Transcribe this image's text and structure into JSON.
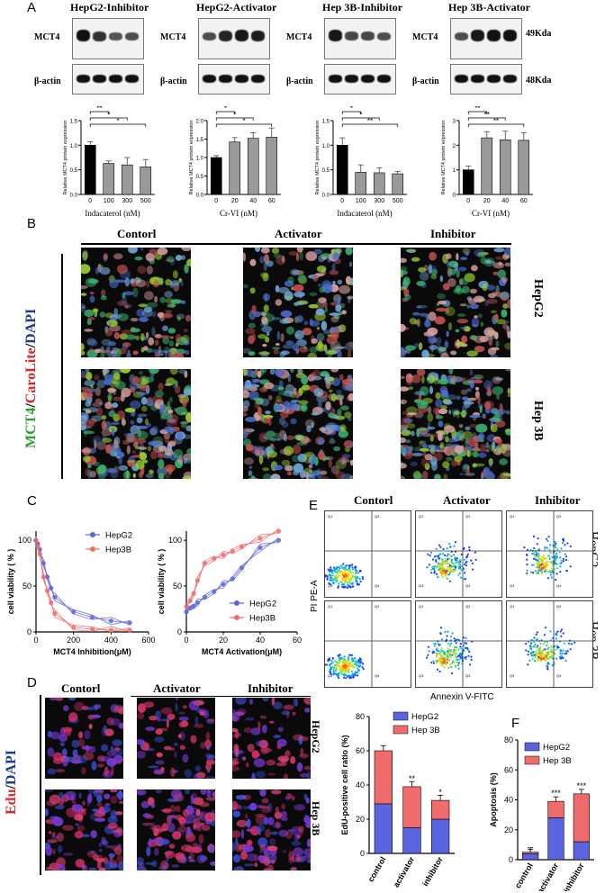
{
  "panels": {
    "A": "A",
    "B": "B",
    "C": "C",
    "D": "D",
    "E": "E",
    "F": "F"
  },
  "panelA": {
    "blots": [
      {
        "title": "HepG2-Inhibitor",
        "label_top": "MCT4",
        "label_bottom": "β-actin"
      },
      {
        "title": "HepG2-Activator",
        "label_top": "MCT4",
        "label_bottom": "β-actin"
      },
      {
        "title": "Hep 3B-Inhibitor",
        "label_top": "MCT4",
        "label_bottom": "β-actin"
      },
      {
        "title": "Hep 3B-Activator",
        "label_top": "MCT4",
        "label_bottom": "β-actin"
      }
    ],
    "kda_top": "49Kda",
    "kda_bottom": "48Kda",
    "xcaption_inhibitor": "Indacaterol (nM)",
    "xcaption_activator": "Cr-VI  (nM)"
  },
  "panelB": {
    "columns": [
      "Contorl",
      "Activator",
      "Inhibitor"
    ],
    "rows": [
      "HepG2",
      "Hep 3B"
    ],
    "stain_parts": [
      {
        "text": "MCT4",
        "color": "#2ca02c"
      },
      {
        "text": "/",
        "color": "#000000"
      },
      {
        "text": "CaroLite",
        "color": "#d62728"
      },
      {
        "text": "/",
        "color": "#000000"
      },
      {
        "text": "DAPI",
        "color": "#1f3a93"
      }
    ]
  },
  "panelD": {
    "columns": [
      "Contorl",
      "Activator",
      "Inhibitor"
    ],
    "rows": [
      "HepG2",
      "Hep 3B"
    ],
    "stain_parts": [
      {
        "text": "Edu",
        "color": "#d62728"
      },
      {
        "text": "/",
        "color": "#000000"
      },
      {
        "text": "DAPI",
        "color": "#1f3a93"
      }
    ]
  },
  "panelE": {
    "columns": [
      "Contorl",
      "Activator",
      "Inhibitor"
    ],
    "rows": [
      "HepG2",
      "Hep 3B"
    ],
    "ylabel": "PI PE-A",
    "xlabel": "Annexin V-FITC",
    "quadrant_labels": [
      "Q1",
      "Q2",
      "Q3",
      "Q4"
    ]
  },
  "chart_data": [
    {
      "id": "A1",
      "type": "bar",
      "categories": [
        "0",
        "100",
        "300",
        "500"
      ],
      "values": [
        1.0,
        0.63,
        0.6,
        0.56
      ],
      "errors": [
        0.07,
        0.05,
        0.15,
        0.15
      ],
      "ylabel": "Relative MCT4 protein expression",
      "ylim": [
        0,
        1.5
      ],
      "yticks": [
        0.0,
        0.5,
        1.0,
        1.5
      ],
      "significance": [
        "**",
        "*",
        "*"
      ]
    },
    {
      "id": "A2",
      "type": "bar",
      "categories": [
        "0",
        "20",
        "40",
        "60"
      ],
      "values": [
        1.0,
        1.42,
        1.52,
        1.55
      ],
      "errors": [
        0.05,
        0.12,
        0.15,
        0.25
      ],
      "ylabel": "Relative MCT4 protein expression",
      "ylim": [
        0,
        2.0
      ],
      "yticks": [
        0.0,
        0.5,
        1.0,
        1.5,
        2.0
      ],
      "significance": [
        "*",
        "*",
        "*"
      ]
    },
    {
      "id": "A3",
      "type": "bar",
      "categories": [
        "0",
        "100",
        "300",
        "500"
      ],
      "values": [
        1.0,
        0.45,
        0.44,
        0.42
      ],
      "errors": [
        0.15,
        0.15,
        0.1,
        0.05
      ],
      "ylabel": "Relative MCT4 protein expression",
      "ylim": [
        0,
        1.5
      ],
      "yticks": [
        0.0,
        0.5,
        1.0,
        1.5
      ],
      "significance": [
        "*",
        "*",
        "**"
      ]
    },
    {
      "id": "A4",
      "type": "bar",
      "categories": [
        "0",
        "20",
        "40",
        "60"
      ],
      "values": [
        1.0,
        2.3,
        2.22,
        2.2
      ],
      "errors": [
        0.15,
        0.25,
        0.35,
        0.3
      ],
      "ylabel": "Relative MCT4 protein expression",
      "ylim": [
        0,
        3
      ],
      "yticks": [
        0,
        1,
        2,
        3
      ],
      "significance": [
        "**",
        "**",
        "**"
      ]
    },
    {
      "id": "C1",
      "type": "line",
      "xlabel": "MCT4 Inhibition(μM)",
      "ylabel": "cell viability ( % )",
      "xlim": [
        0,
        600
      ],
      "ylim": [
        0,
        110
      ],
      "xticks": [
        0,
        200,
        400,
        600
      ],
      "yticks": [
        0,
        50,
        100
      ],
      "series": [
        {
          "name": "HepG2",
          "x": [
            0,
            10,
            20,
            40,
            60,
            80,
            100,
            200,
            300,
            400,
            500
          ],
          "y": [
            100,
            96,
            90,
            75,
            60,
            48,
            38,
            22,
            16,
            12,
            10
          ]
        },
        {
          "name": "Hep3B",
          "x": [
            0,
            10,
            20,
            40,
            60,
            80,
            100,
            200,
            300,
            400,
            500
          ],
          "y": [
            100,
            93,
            85,
            60,
            45,
            32,
            20,
            5,
            3,
            2,
            2
          ]
        }
      ]
    },
    {
      "id": "C2",
      "type": "line",
      "xlabel": "MCT4 Activation(μM)",
      "ylabel": "cell viability ( % )",
      "xlim": [
        0,
        60
      ],
      "ylim": [
        0,
        110
      ],
      "xticks": [
        0,
        20,
        40,
        60
      ],
      "yticks": [
        0,
        50,
        100
      ],
      "series": [
        {
          "name": "HepG2",
          "x": [
            0,
            2,
            4,
            6,
            10,
            15,
            20,
            25,
            30,
            40,
            50
          ],
          "y": [
            22,
            26,
            28,
            32,
            38,
            44,
            52,
            58,
            70,
            92,
            100
          ]
        },
        {
          "name": "Hep3B",
          "x": [
            0,
            2,
            4,
            6,
            10,
            15,
            20,
            25,
            30,
            40,
            50
          ],
          "y": [
            28,
            34,
            42,
            56,
            75,
            80,
            84,
            88,
            93,
            102,
            110
          ]
        }
      ]
    },
    {
      "id": "D-chart",
      "type": "bar",
      "stacked": true,
      "categories": [
        "control",
        "activator",
        "inhibitor"
      ],
      "ylabel": "EdU-positive cell ratio (%)",
      "ylim": [
        0,
        80
      ],
      "yticks": [
        0,
        20,
        40,
        60,
        80
      ],
      "series": [
        {
          "name": "HepG2",
          "values": [
            29,
            15,
            20
          ]
        },
        {
          "name": "Hep 3B",
          "values": [
            31,
            24,
            11
          ]
        }
      ],
      "significance": [
        "",
        "**",
        "*"
      ]
    },
    {
      "id": "F-chart",
      "type": "bar",
      "stacked": true,
      "categories": [
        "control",
        "activator",
        "inhibitor"
      ],
      "ylabel": "Apoptosis (%)",
      "ylim": [
        0,
        80
      ],
      "yticks": [
        0,
        20,
        40,
        60,
        80
      ],
      "series": [
        {
          "name": "HepG2",
          "values": [
            4,
            28,
            12
          ]
        },
        {
          "name": "Hep 3B",
          "values": [
            1,
            11,
            32
          ]
        }
      ],
      "significance": [
        "",
        "***",
        "***"
      ]
    }
  ],
  "colors": {
    "bar_black": "#000000",
    "bar_grey": "#9a9a9a",
    "hepg2": "#5b64e0",
    "hep3b": "#f06b6b"
  }
}
